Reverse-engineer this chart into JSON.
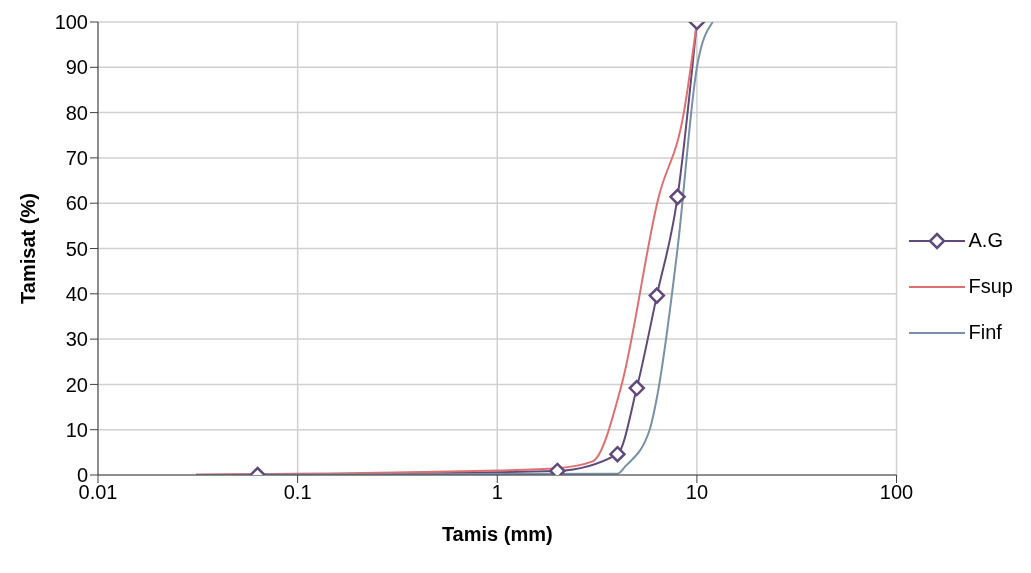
{
  "chart_data": {
    "type": "line",
    "xlabel": "Tamis (mm)",
    "ylabel": "Tamisat (%)",
    "log": "x",
    "xlim": [
      0.01,
      100
    ],
    "xticks": [
      0.01,
      0.1,
      1,
      10,
      100
    ],
    "ylim": [
      0,
      100
    ],
    "yticks": [
      0,
      10,
      20,
      30,
      40,
      50,
      60,
      70,
      80,
      90,
      100
    ],
    "grid": true,
    "legend": "right",
    "series": [
      {
        "name": "A.G",
        "color": "#604a7b",
        "marker": "diamond",
        "x": [
          0.063,
          2,
          4,
          5,
          6.3,
          8,
          10
        ],
        "values": [
          0,
          0.9,
          4.6,
          19.2,
          39.6,
          61.4,
          100
        ]
      },
      {
        "name": "Fsup",
        "color": "#e07070",
        "marker": "none",
        "x": [
          0.031,
          1,
          2,
          3,
          4.2,
          6.4,
          8.6,
          10
        ],
        "values": [
          0.1,
          1,
          1.5,
          3,
          20,
          61,
          80,
          100
        ]
      },
      {
        "name": "Finf",
        "color": "#7890a8",
        "marker": "none",
        "x": [
          0.031,
          4,
          4.4,
          5.8,
          6.3,
          8,
          10,
          12
        ],
        "values": [
          0,
          0.3,
          2,
          10,
          17,
          50,
          90,
          100
        ]
      }
    ]
  }
}
